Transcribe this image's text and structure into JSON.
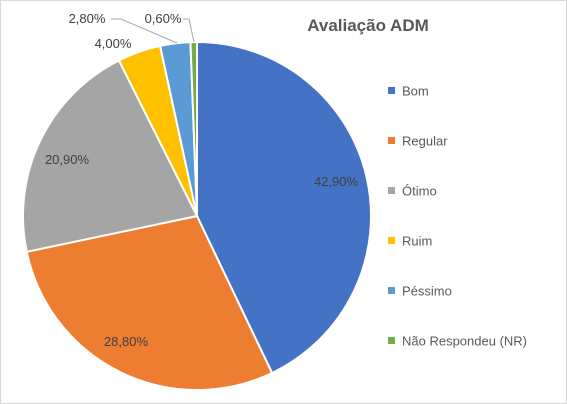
{
  "chart_data": {
    "type": "pie",
    "title": "Avaliação ADM",
    "legend_position": "right",
    "slices": [
      {
        "name": "Bom",
        "value": 42.9,
        "label": "42,90%",
        "color": "#4472C4"
      },
      {
        "name": "Regular",
        "value": 28.8,
        "label": "28,80%",
        "color": "#ED7D31"
      },
      {
        "name": "Ótimo",
        "value": 20.9,
        "label": "20,90%",
        "color": "#A5A5A5"
      },
      {
        "name": "Ruim",
        "value": 4.0,
        "label": "4,00%",
        "color": "#FFC000"
      },
      {
        "name": "Péssimo",
        "value": 2.8,
        "label": "2,80%",
        "color": "#5B9BD5"
      },
      {
        "name": "Não Respondeu (NR)",
        "value": 0.6,
        "label": "0,60%",
        "color": "#70AD47"
      }
    ]
  }
}
